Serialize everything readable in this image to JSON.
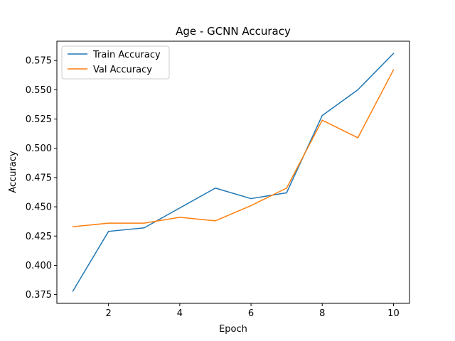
{
  "chart_data": {
    "type": "line",
    "title": "Age - GCNN Accuracy",
    "xlabel": "Epoch",
    "ylabel": "Accuracy",
    "x": [
      1,
      2,
      3,
      4,
      5,
      6,
      7,
      8,
      9,
      10
    ],
    "series": [
      {
        "name": "Train Accuracy",
        "color": "#1f77b4",
        "values": [
          0.378,
          0.429,
          0.432,
          0.449,
          0.466,
          0.457,
          0.462,
          0.528,
          0.55,
          0.581
        ]
      },
      {
        "name": "Val Accuracy",
        "color": "#ff7f0e",
        "values": [
          0.433,
          0.436,
          0.436,
          0.441,
          0.438,
          0.451,
          0.466,
          0.524,
          0.509,
          0.567
        ]
      }
    ],
    "xlim": [
      0.55,
      10.45
    ],
    "ylim": [
      0.3675,
      0.5915
    ],
    "xticks": [
      2,
      4,
      6,
      8,
      10
    ],
    "yticks": [
      0.375,
      0.4,
      0.425,
      0.45,
      0.475,
      0.5,
      0.525,
      0.55,
      0.575
    ],
    "xtick_labels": [
      "2",
      "4",
      "6",
      "8",
      "10"
    ],
    "ytick_labels": [
      "0.375",
      "0.400",
      "0.425",
      "0.450",
      "0.475",
      "0.500",
      "0.525",
      "0.550",
      "0.575"
    ],
    "grid": false,
    "legend_position": "top-left"
  }
}
